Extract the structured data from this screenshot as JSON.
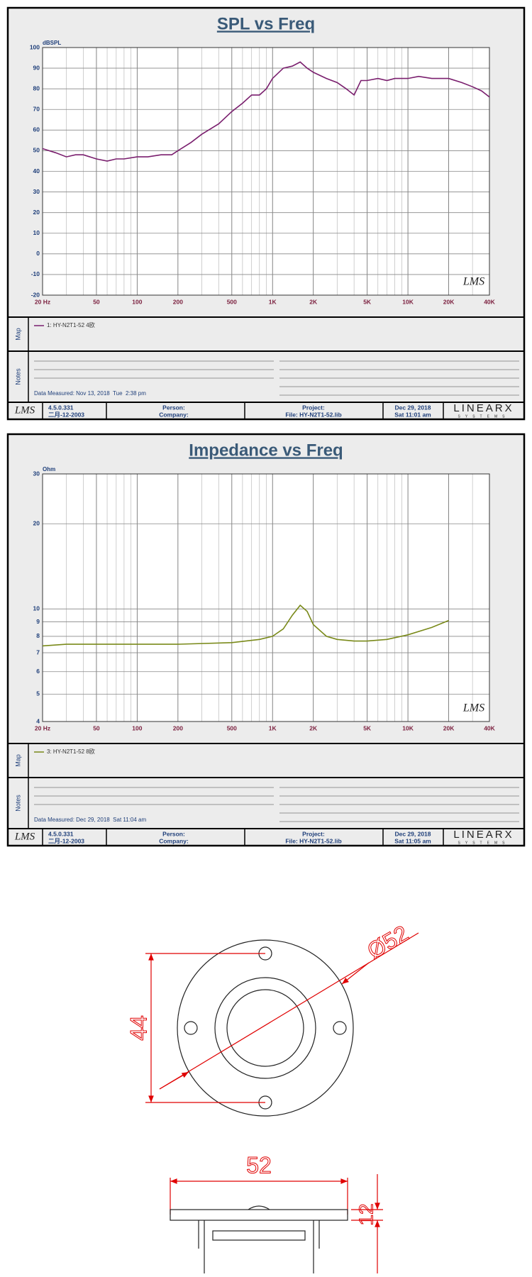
{
  "chart_data": [
    {
      "type": "line",
      "title": "SPL vs Freq",
      "y_label": "dBSPL",
      "log_x": true,
      "grid": true,
      "x": [
        20,
        25,
        30,
        35,
        40,
        50,
        60,
        70,
        80,
        100,
        120,
        150,
        180,
        200,
        250,
        300,
        400,
        500,
        600,
        700,
        800,
        900,
        1000,
        1200,
        1400,
        1600,
        1800,
        2000,
        2500,
        3000,
        3500,
        4000,
        4500,
        5000,
        6000,
        7000,
        8000,
        10000,
        12000,
        15000,
        20000,
        25000,
        30000,
        35000,
        40000
      ],
      "series": [
        {
          "name": "1: HY-N2T1-52 4欧",
          "color": "#7a1f6e",
          "values": [
            51,
            49,
            47,
            48,
            48,
            46,
            45,
            46,
            46,
            47,
            47,
            48,
            48,
            50,
            54,
            58,
            63,
            69,
            73,
            77,
            77,
            80,
            85,
            90,
            91,
            93,
            90,
            88,
            85,
            83,
            80,
            77,
            84,
            84,
            85,
            84,
            85,
            85,
            86,
            85,
            85,
            83,
            81,
            79,
            76
          ]
        }
      ],
      "xlim": [
        20,
        40000
      ],
      "xticks": [
        {
          "value": 20,
          "label": "20 Hz"
        },
        50,
        100,
        200,
        500,
        {
          "value": 1000,
          "label": "1K"
        },
        {
          "value": 2000,
          "label": "2K"
        },
        {
          "value": 5000,
          "label": "5K"
        },
        {
          "value": 10000,
          "label": "10K"
        },
        {
          "value": 20000,
          "label": "20K"
        },
        {
          "value": 40000,
          "label": "40K"
        }
      ],
      "x_minor": [
        30,
        40,
        60,
        70,
        80,
        90,
        300,
        400,
        600,
        700,
        800,
        900,
        3000,
        4000,
        6000,
        7000,
        8000,
        9000,
        30000
      ],
      "ylim": [
        -20,
        100
      ],
      "yticks": [
        -20,
        -10,
        0,
        10,
        20,
        30,
        40,
        50,
        60,
        70,
        80,
        90,
        100
      ]
    },
    {
      "type": "line",
      "title": "Impedance vs Freq",
      "y_label": "Ohm",
      "log_x": true,
      "log_y": true,
      "grid": true,
      "x": [
        20,
        30,
        50,
        100,
        200,
        500,
        800,
        1000,
        1200,
        1400,
        1600,
        1800,
        2000,
        2500,
        3000,
        4000,
        5000,
        7000,
        10000,
        15000,
        20000
      ],
      "series": [
        {
          "name": "3: HY-N2T1-52 8欧",
          "color": "#7a8a1a",
          "values": [
            7.4,
            7.5,
            7.5,
            7.5,
            7.5,
            7.6,
            7.8,
            8.0,
            8.5,
            9.5,
            10.3,
            9.8,
            8.8,
            8.0,
            7.8,
            7.7,
            7.7,
            7.8,
            8.1,
            8.6,
            9.1
          ]
        }
      ],
      "xlim": [
        20,
        40000
      ],
      "xticks": [
        {
          "value": 20,
          "label": "20 Hz"
        },
        50,
        100,
        200,
        500,
        {
          "value": 1000,
          "label": "1K"
        },
        {
          "value": 2000,
          "label": "2K"
        },
        {
          "value": 5000,
          "label": "5K"
        },
        {
          "value": 10000,
          "label": "10K"
        },
        {
          "value": 20000,
          "label": "20K"
        },
        {
          "value": 40000,
          "label": "40K"
        }
      ],
      "x_minor": [
        30,
        40,
        60,
        70,
        80,
        90,
        300,
        400,
        600,
        700,
        800,
        900,
        3000,
        4000,
        6000,
        7000,
        8000,
        9000,
        30000
      ],
      "ylim": [
        4,
        30
      ],
      "yticks": [
        4,
        5,
        6,
        7,
        8,
        9,
        10,
        20,
        30
      ]
    }
  ],
  "panels": [
    {
      "map_label": "Map",
      "notes_label": "Notes",
      "measured": "Data Measured: Nov 13, 2018  Tue  2:38 pm",
      "logo": "LMS",
      "version": "4.5.0.331",
      "date_code": "二月-12-2003",
      "person": "Person:",
      "company": "Company:",
      "project": "Project:",
      "file": "File: HY-N2T1-52.lib",
      "date": "Dec 29, 2018",
      "time": "Sat 11:01 am",
      "brand": "LINEARX",
      "brand_sub": "SYSTEMS"
    },
    {
      "map_label": "Map",
      "notes_label": "Notes",
      "measured": "Data Measured: Dec 29, 2018  Sat 11:04 am",
      "logo": "LMS",
      "version": "4.5.0.331",
      "date_code": "二月-12-2003",
      "person": "Person:",
      "company": "Company:",
      "project": "Project:",
      "file": "File: HY-N2T1-52.lib",
      "date": "Dec 29, 2018",
      "time": "Sat 11:05 am",
      "brand": "LINEARX",
      "brand_sub": "SYSTEMS"
    }
  ],
  "drawing": {
    "diameter": "Ø52",
    "hole_spacing": "44",
    "width": "52",
    "height": "12"
  }
}
